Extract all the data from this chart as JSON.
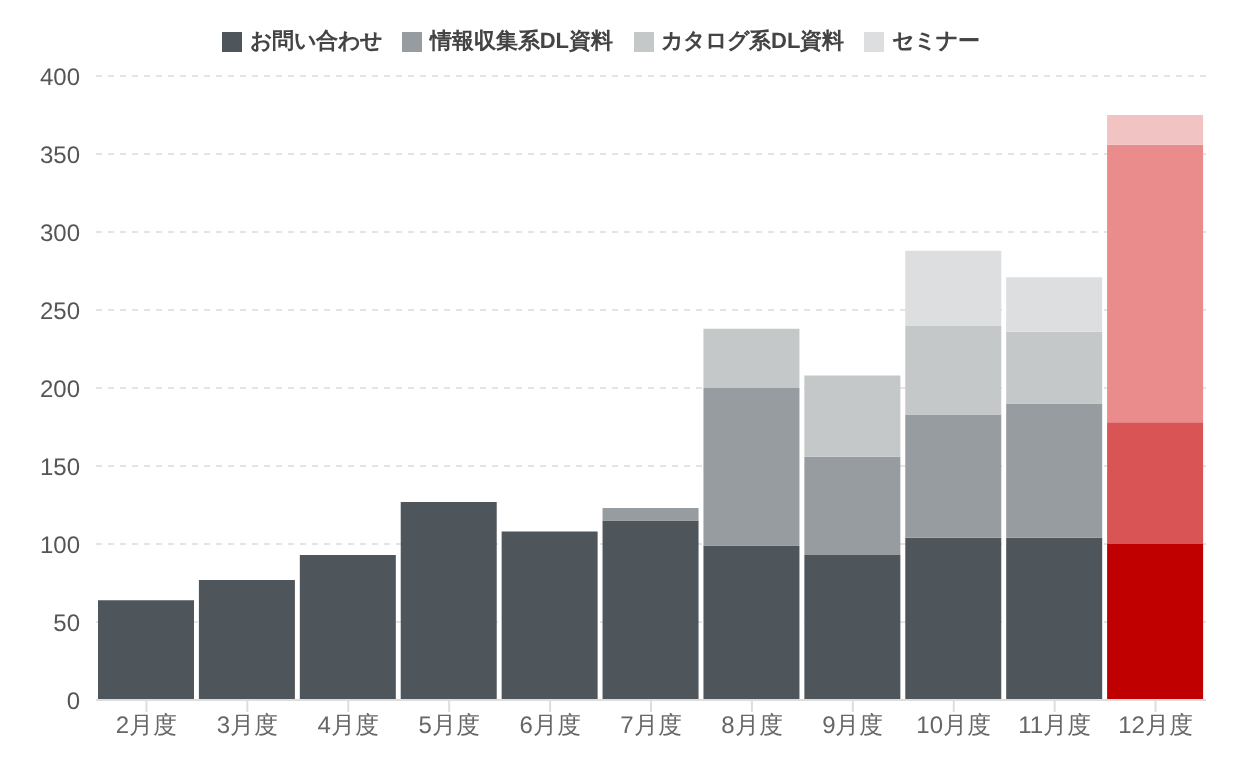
{
  "chart_data": {
    "type": "bar",
    "stacked": true,
    "categories": [
      "2月度",
      "3月度",
      "4月度",
      "5月度",
      "6月度",
      "7月度",
      "8月度",
      "9月度",
      "10月度",
      "11月度",
      "12月度"
    ],
    "series": [
      {
        "name": "お問い合わせ",
        "color": "#4f565b",
        "colors": [
          "#4f565b",
          "#4f565b",
          "#4f565b",
          "#4f565b",
          "#4f565b",
          "#4f565b",
          "#4f565b",
          "#4f565b",
          "#4f565b",
          "#4f565b",
          "#c00000"
        ],
        "values": [
          64,
          77,
          93,
          127,
          108,
          115,
          99,
          93,
          104,
          104,
          100
        ]
      },
      {
        "name": "情報収集系DL資料",
        "color": "#969c9f",
        "colors": [
          "#969c9f",
          "#969c9f",
          "#969c9f",
          "#969c9f",
          "#969c9f",
          "#969c9f",
          "#969c9f",
          "#969c9f",
          "#969c9f",
          "#969c9f",
          "#d95555"
        ],
        "values": [
          null,
          null,
          null,
          null,
          null,
          8,
          101,
          63,
          79,
          86,
          78
        ]
      },
      {
        "name": "カタログ系DL資料",
        "color": "#c5c8c9",
        "colors": [
          "#c5c8c9",
          "#c5c8c9",
          "#c5c8c9",
          "#c5c8c9",
          "#c5c8c9",
          "#c5c8c9",
          "#c5c8c9",
          "#c5c8c9",
          "#c5c8c9",
          "#c5c8c9",
          "#eb8c8c"
        ],
        "values": [
          null,
          null,
          null,
          null,
          null,
          null,
          38,
          52,
          57,
          46,
          178
        ]
      },
      {
        "name": "セミナー",
        "color": "#dcdedf",
        "colors": [
          "#dcdedf",
          "#dcdedf",
          "#dcdedf",
          "#dcdedf",
          "#dcdedf",
          "#dcdedf",
          "#dcdedf",
          "#dcdedf",
          "#dcdedf",
          "#dcdedf",
          "#f2c3c3"
        ],
        "values": [
          null,
          null,
          null,
          null,
          null,
          null,
          null,
          null,
          48,
          35,
          19
        ]
      }
    ],
    "ylim": [
      0,
      400
    ],
    "yticks": [
      0,
      50,
      100,
      150,
      200,
      250,
      300,
      350,
      400
    ],
    "grid": "y",
    "legend": "top"
  }
}
